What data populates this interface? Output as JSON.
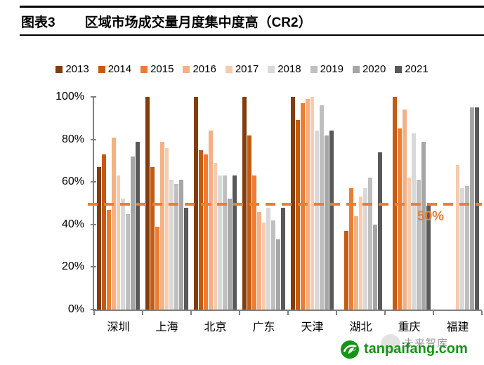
{
  "header": {
    "label": "图表3",
    "title": "区域市场成交量月度集中度高（CR2）"
  },
  "chart_data": {
    "type": "bar",
    "title": "区域市场成交量月度集中度高（CR2）",
    "categories": [
      "深圳",
      "上海",
      "北京",
      "广东",
      "天津",
      "湖北",
      "重庆",
      "福建"
    ],
    "series": [
      {
        "name": "2013",
        "color": "#843C0C",
        "values": [
          67,
          100,
          100,
          100,
          100,
          null,
          null,
          null
        ]
      },
      {
        "name": "2014",
        "color": "#C55A11",
        "values": [
          73,
          67,
          75,
          82,
          89,
          37,
          100,
          null
        ]
      },
      {
        "name": "2015",
        "color": "#ED7D31",
        "values": [
          47,
          39,
          73,
          63,
          97,
          57,
          85,
          null
        ]
      },
      {
        "name": "2016",
        "color": "#F4B183",
        "values": [
          81,
          79,
          84,
          46,
          99,
          44,
          94,
          null
        ]
      },
      {
        "name": "2017",
        "color": "#F8CBAD",
        "values": [
          63,
          76,
          69,
          41,
          100,
          53,
          62,
          68
        ]
      },
      {
        "name": "2018",
        "color": "#D9D9D9",
        "values": [
          52,
          61,
          63,
          48,
          84,
          57,
          83,
          57
        ]
      },
      {
        "name": "2019",
        "color": "#BFBFBF",
        "values": [
          45,
          59,
          63,
          42,
          96,
          62,
          61,
          58
        ]
      },
      {
        "name": "2020",
        "color": "#A6A6A6",
        "values": [
          72,
          61,
          52,
          33,
          82,
          40,
          79,
          95
        ]
      },
      {
        "name": "2021",
        "color": "#595959",
        "values": [
          79,
          48,
          63,
          48,
          84,
          74,
          49,
          95
        ]
      }
    ],
    "xlabel": "",
    "ylabel": "",
    "ylim": [
      0,
      100
    ],
    "y_ticks": [
      "0%",
      "20%",
      "40%",
      "60%",
      "80%",
      "100%"
    ],
    "grid": false,
    "legend_position": "top",
    "reference_line": {
      "value": 50,
      "label": "50%",
      "color": "#ED7D31",
      "style": "dashed"
    }
  },
  "watermark": {
    "text": "tanpaifang.com",
    "color": "#169416",
    "background_text": "未来智库"
  }
}
